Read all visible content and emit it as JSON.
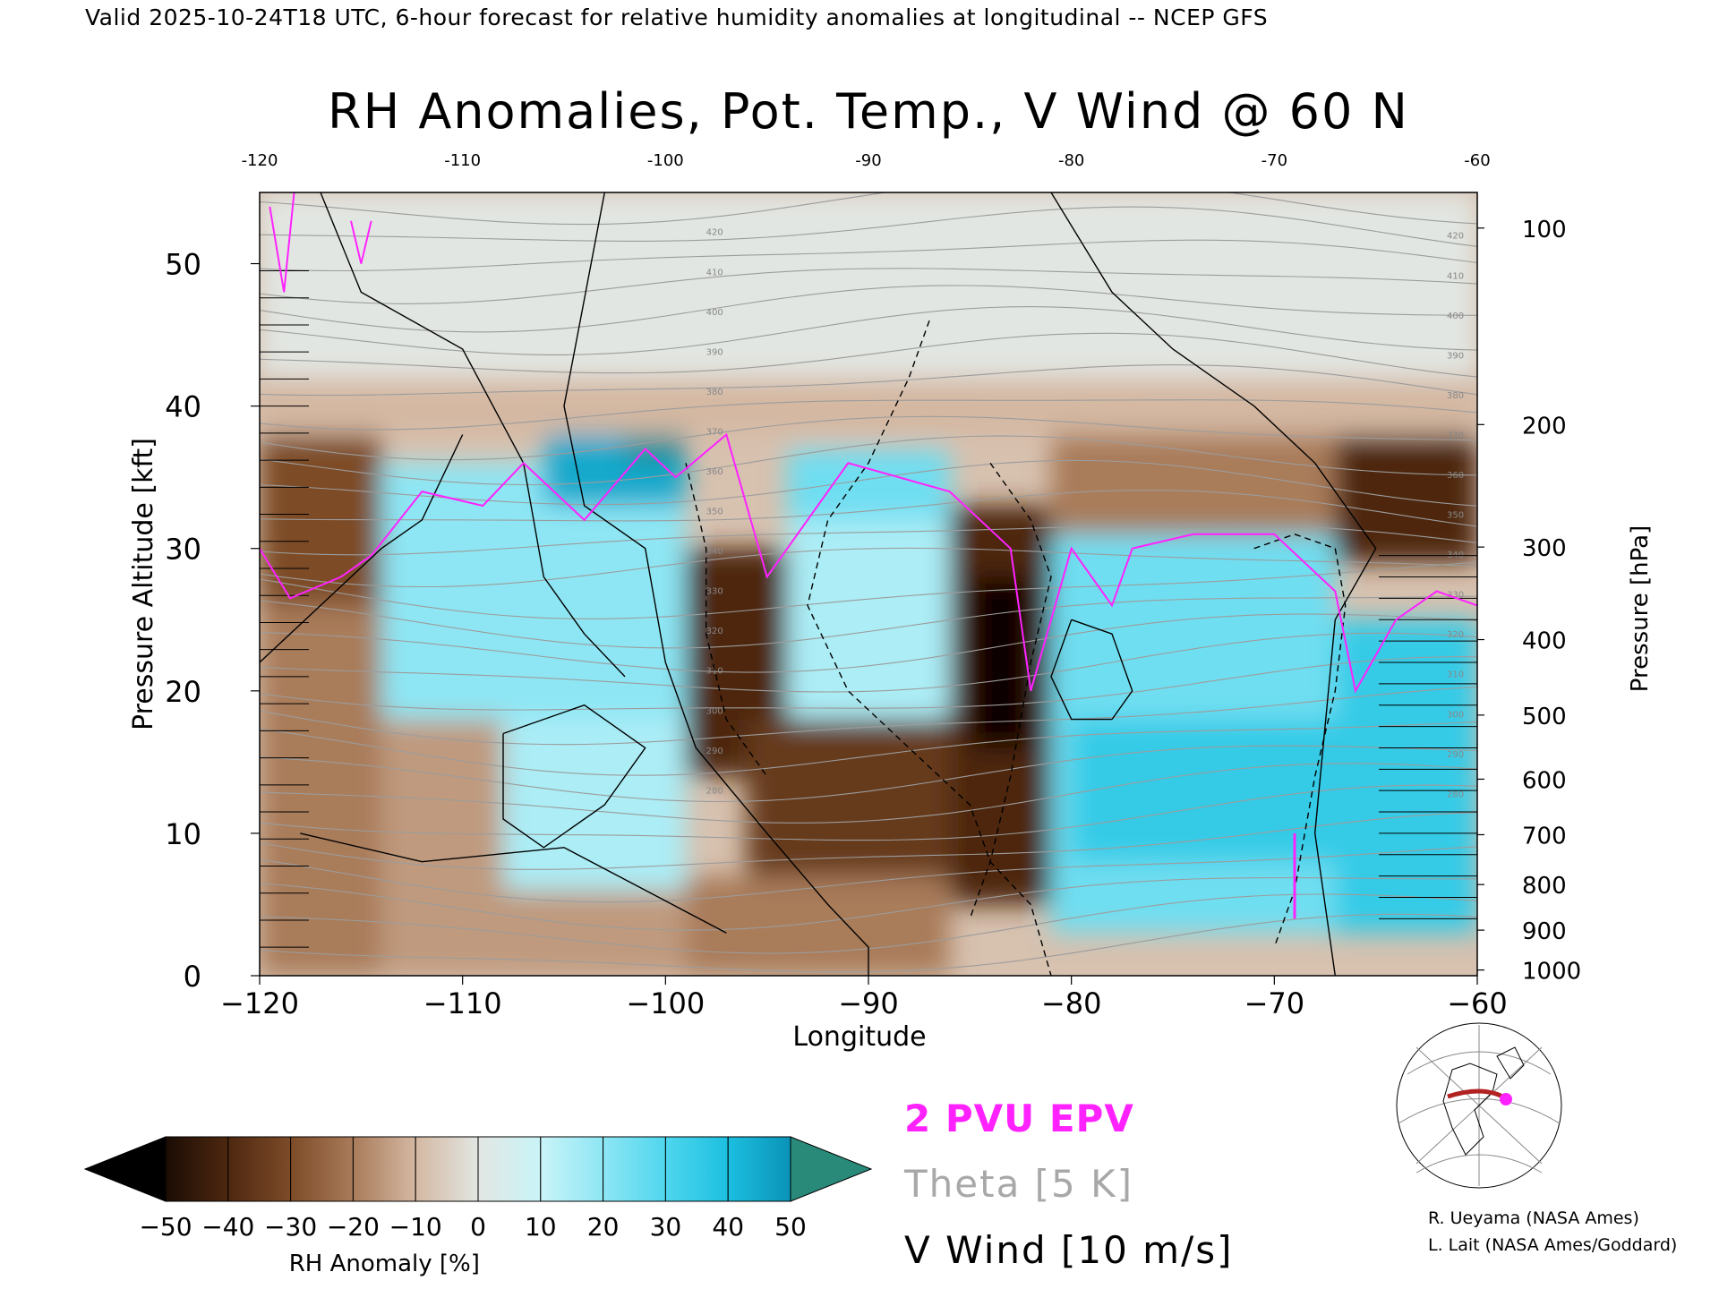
{
  "header": {
    "valid_line": "Valid 2025-10-24T18 UTC, 6-hour forecast for relative humidity anomalies at longitudinal -- NCEP GFS",
    "title": "RH Anomalies, Pot. Temp., V Wind @ 60 N"
  },
  "chart_data": {
    "type": "heatmap",
    "title": "RH Anomalies, Pot. Temp., V Wind @ 60 N",
    "xlabel": "Longitude",
    "ylabel": "Pressure Altitude [kft]",
    "y2label": "Pressure [hPa]",
    "xlim": [
      -120,
      -60
    ],
    "ylim": [
      0,
      55
    ],
    "x_ticks": [
      -120,
      -110,
      -100,
      -90,
      -80,
      -70,
      -60
    ],
    "x_tick_labels": [
      "−120",
      "−110",
      "−100",
      "−90",
      "−80",
      "−70",
      "−60"
    ],
    "top_tick_labels": [
      "-120",
      "-110",
      "-100",
      "-90",
      "-80",
      "-70",
      "-60"
    ],
    "y_ticks": [
      0,
      10,
      20,
      30,
      40,
      50
    ],
    "y_tick_labels": [
      "0",
      "10",
      "20",
      "30",
      "40",
      "50"
    ],
    "pressure_ticks": [
      {
        "label": "100",
        "kft": 52.5
      },
      {
        "label": "200",
        "kft": 38.7
      },
      {
        "label": "300",
        "kft": 30.1
      },
      {
        "label": "400",
        "kft": 23.6
      },
      {
        "label": "500",
        "kft": 18.3
      },
      {
        "label": "600",
        "kft": 13.8
      },
      {
        "label": "700",
        "kft": 9.9
      },
      {
        "label": "800",
        "kft": 6.4
      },
      {
        "label": "900",
        "kft": 3.2
      },
      {
        "label": "1000",
        "kft": 0.4
      }
    ],
    "rh_regions": [
      {
        "x0": -120,
        "x1": -60,
        "y0": 42,
        "y1": 55,
        "value": 0
      },
      {
        "x0": -120,
        "x1": -114,
        "y0": 26,
        "y1": 38,
        "value": -30
      },
      {
        "x0": -120,
        "x1": -114,
        "y0": 0,
        "y1": 26,
        "value": -20
      },
      {
        "x0": -114,
        "x1": -108,
        "y0": 0,
        "y1": 18,
        "value": -15
      },
      {
        "x0": -114,
        "x1": -99,
        "y0": 18,
        "y1": 36,
        "value": 20
      },
      {
        "x0": -108,
        "x1": -99,
        "y0": 5,
        "y1": 18,
        "value": 15
      },
      {
        "x0": -106,
        "x1": -99,
        "y0": 33,
        "y1": 40,
        "value": 45
      },
      {
        "x0": -102,
        "x1": -99,
        "y0": 36,
        "y1": 39,
        "value": 55
      },
      {
        "x0": -112,
        "x1": -99,
        "y0": 0,
        "y1": 6,
        "value": -15
      },
      {
        "x0": -99,
        "x1": -94,
        "y0": 14,
        "y1": 30,
        "value": -40
      },
      {
        "x0": -94,
        "x1": -86,
        "y0": 18,
        "y1": 32,
        "value": 15
      },
      {
        "x0": -96,
        "x1": -86,
        "y0": 7,
        "y1": 18,
        "value": -35
      },
      {
        "x0": -99,
        "x1": -86,
        "y0": 0,
        "y1": 7,
        "value": -20
      },
      {
        "x0": -94,
        "x1": -86,
        "y0": 32,
        "y1": 37,
        "value": 25
      },
      {
        "x0": -86,
        "x1": -81,
        "y0": 5,
        "y1": 33,
        "value": -40
      },
      {
        "x0": -85,
        "x1": -82,
        "y0": 16,
        "y1": 28,
        "value": -55
      },
      {
        "x0": -81,
        "x1": -67,
        "y0": 3,
        "y1": 31,
        "value": 25
      },
      {
        "x0": -80,
        "x1": -67,
        "y0": 8,
        "y1": 18,
        "value": 35
      },
      {
        "x0": -67,
        "x1": -60,
        "y0": 3,
        "y1": 25,
        "value": 35
      },
      {
        "x0": -67,
        "x1": -60,
        "y0": 29,
        "y1": 38,
        "value": -40
      },
      {
        "x0": -81,
        "x1": -67,
        "y0": 31,
        "y1": 38,
        "value": -20
      },
      {
        "x0": -120,
        "x1": -60,
        "y0": 38,
        "y1": 42,
        "value": -10
      }
    ],
    "theta_isentrope_labels": [
      "420",
      "410",
      "400",
      "390",
      "380",
      "370",
      "360",
      "350",
      "340",
      "330",
      "320",
      "310",
      "300",
      "290",
      "280"
    ],
    "epv_2pvu_line": [
      {
        "x": -120,
        "y": 30
      },
      {
        "x": -118.5,
        "y": 26.5
      },
      {
        "x": -116,
        "y": 28
      },
      {
        "x": -114.5,
        "y": 29.5
      },
      {
        "x": -112,
        "y": 34
      },
      {
        "x": -109,
        "y": 33
      },
      {
        "x": -107,
        "y": 36
      },
      {
        "x": -104,
        "y": 32
      },
      {
        "x": -101,
        "y": 37
      },
      {
        "x": -99.5,
        "y": 35
      },
      {
        "x": -97,
        "y": 38
      },
      {
        "x": -95,
        "y": 28
      },
      {
        "x": -91,
        "y": 36
      },
      {
        "x": -86,
        "y": 34
      },
      {
        "x": -83,
        "y": 30
      },
      {
        "x": -82,
        "y": 20
      },
      {
        "x": -80,
        "y": 30
      },
      {
        "x": -78,
        "y": 26
      },
      {
        "x": -77,
        "y": 30
      },
      {
        "x": -74,
        "y": 31
      },
      {
        "x": -70,
        "y": 31
      },
      {
        "x": -67,
        "y": 27
      },
      {
        "x": -66,
        "y": 20
      },
      {
        "x": -64,
        "y": 25
      },
      {
        "x": -62,
        "y": 27
      },
      {
        "x": -60,
        "y": 26
      }
    ],
    "colorbar": {
      "label": "RH Anomaly [%]",
      "tick_labels": [
        "−50",
        "−40",
        "−30",
        "−20",
        "−10",
        "0",
        "10",
        "20",
        "30",
        "40",
        "50"
      ],
      "tick_values": [
        -50,
        -40,
        -30,
        -20,
        -10,
        0,
        10,
        20,
        30,
        40,
        50
      ]
    },
    "legend": [
      {
        "label": "2 PVU EPV",
        "color": "#ff22ff"
      },
      {
        "label": "Theta [5 K]",
        "color": "#a8a8a8"
      },
      {
        "label": "V Wind [10 m/s]",
        "color": "#000000"
      }
    ]
  },
  "credits": {
    "line1": "R. Ueyama (NASA Ames)",
    "line2": "L. Lait (NASA Ames/Goddard)"
  }
}
